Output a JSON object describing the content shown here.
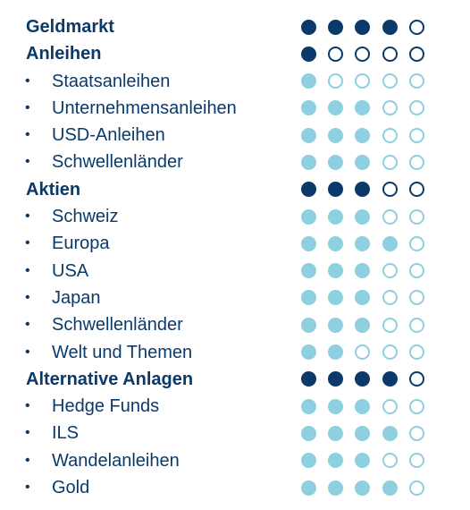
{
  "max_rating": 5,
  "colors": {
    "category_text": "#0b3a6a",
    "category_dot": "#0b3a6a",
    "item_text": "#0b3a6a",
    "item_dot": "#8ecfe0",
    "empty_dot_fill": "#ffffff"
  },
  "bullet_symbol": "•",
  "rows": [
    {
      "kind": "category",
      "label": "Geldmarkt",
      "rating": 4
    },
    {
      "kind": "category",
      "label": "Anleihen",
      "rating": 1
    },
    {
      "kind": "item",
      "label": "Staatsanleihen",
      "rating": 1
    },
    {
      "kind": "item",
      "label": "Unternehmensanleihen",
      "rating": 3
    },
    {
      "kind": "item",
      "label": "USD-Anleihen",
      "rating": 3
    },
    {
      "kind": "item",
      "label": "Schwellenländer",
      "rating": 3
    },
    {
      "kind": "category",
      "label": "Aktien",
      "rating": 3
    },
    {
      "kind": "item",
      "label": "Schweiz",
      "rating": 3
    },
    {
      "kind": "item",
      "label": "Europa",
      "rating": 4
    },
    {
      "kind": "item",
      "label": "USA",
      "rating": 3
    },
    {
      "kind": "item",
      "label": "Japan",
      "rating": 3
    },
    {
      "kind": "item",
      "label": "Schwellenländer",
      "rating": 3
    },
    {
      "kind": "item",
      "label": "Welt und Themen",
      "rating": 2
    },
    {
      "kind": "category",
      "label": "Alternative Anlagen",
      "rating": 4
    },
    {
      "kind": "item",
      "label": "Hedge Funds",
      "rating": 3
    },
    {
      "kind": "item",
      "label": "ILS",
      "rating": 4
    },
    {
      "kind": "item",
      "label": "Wandelanleihen",
      "rating": 3
    },
    {
      "kind": "item",
      "label": "Gold",
      "rating": 4
    }
  ]
}
